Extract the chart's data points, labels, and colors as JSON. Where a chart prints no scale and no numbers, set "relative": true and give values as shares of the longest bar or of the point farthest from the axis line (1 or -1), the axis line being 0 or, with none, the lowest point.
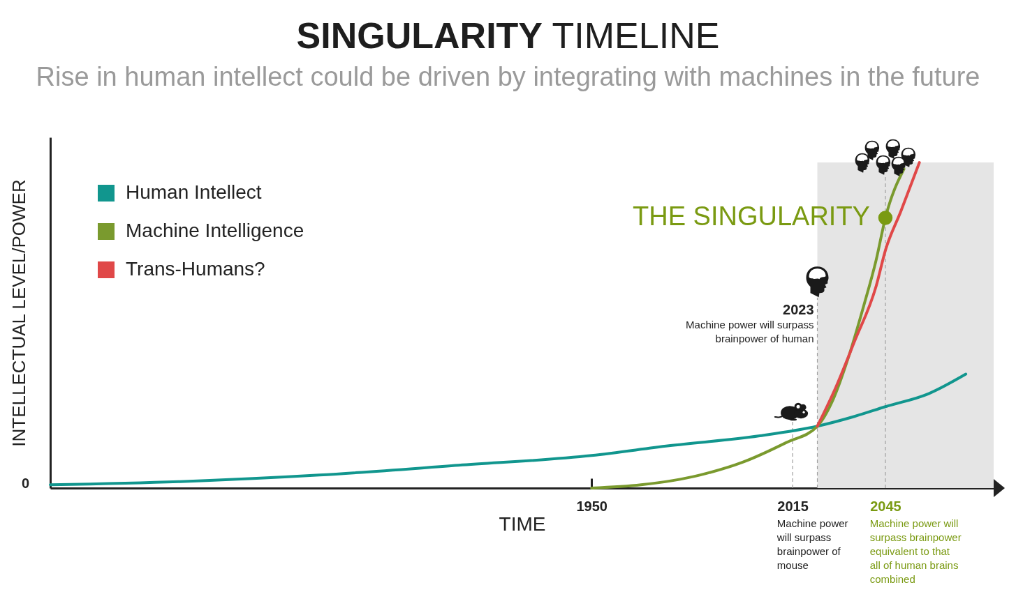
{
  "chart_data": {
    "type": "line",
    "title": "SINGULARITY TIMELINE",
    "subtitle": "Rise in human intellect could be driven by integrating with machines in the future",
    "xlabel": "TIME",
    "ylabel": "INTELLECTUAL LEVEL/POWER",
    "relative": true,
    "legend": "top left",
    "xlim": [
      1775,
      2080
    ],
    "xticks": [
      1950,
      2015,
      2045
    ],
    "series": [
      {
        "name": "Human Intellect",
        "color": "#11968e",
        "x": [
          1775,
          1817,
          1862,
          1907,
          1950,
          1975,
          2004,
          2023,
          2035,
          2045,
          2059,
          2071
        ],
        "values": [
          0.01,
          0.02,
          0.04,
          0.07,
          0.1,
          0.13,
          0.16,
          0.19,
          0.22,
          0.25,
          0.29,
          0.35
        ]
      },
      {
        "name": "Machine Intelligence",
        "color": "#7a9a2e",
        "x": [
          1950,
          1966,
          1985,
          1999,
          2013,
          2023,
          2028,
          2033,
          2038,
          2042,
          2045,
          2051
        ],
        "values": [
          0,
          0.01,
          0.04,
          0.08,
          0.14,
          0.19,
          0.27,
          0.4,
          0.56,
          0.7,
          0.83,
          0.98
        ]
      },
      {
        "name": "Trans-Humans?",
        "color": "#e04848",
        "x": [
          2023,
          2029,
          2035,
          2042,
          2045,
          2050,
          2056
        ],
        "values": [
          0.19,
          0.31,
          0.45,
          0.62,
          0.73,
          0.85,
          1
        ]
      },
      {
        "type": "scatter",
        "color": "#7a9a12",
        "x": [
          2045
        ],
        "values": [
          0.83
        ]
      }
    ],
    "bands": [
      {
        "axis": "x",
        "from": 2023,
        "to": 2080,
        "color": "#e5e5e5"
      }
    ],
    "ref_lines": [
      {
        "axis": "x",
        "value": 2015,
        "line_style": "dashed",
        "color": "#a0a0a0"
      },
      {
        "axis": "x",
        "value": 2023,
        "label": "2023",
        "line_style": "dashed",
        "color": "#a0a0a0"
      },
      {
        "axis": "x",
        "value": 2045,
        "line_style": "dashed",
        "color": "#a0a0a0"
      }
    ],
    "annotations": [
      {
        "text": "THE SINGULARITY",
        "x": 2045,
        "y": 0.83
      },
      {
        "text": "Machine power will surpass brainpower of human",
        "x": 2023,
        "y": 0.52
      },
      "0",
      "Machine power will surpass brainpower of mouse",
      "Machine power will surpass brainpower equivalent to that all of human brains combined"
    ]
  }
}
